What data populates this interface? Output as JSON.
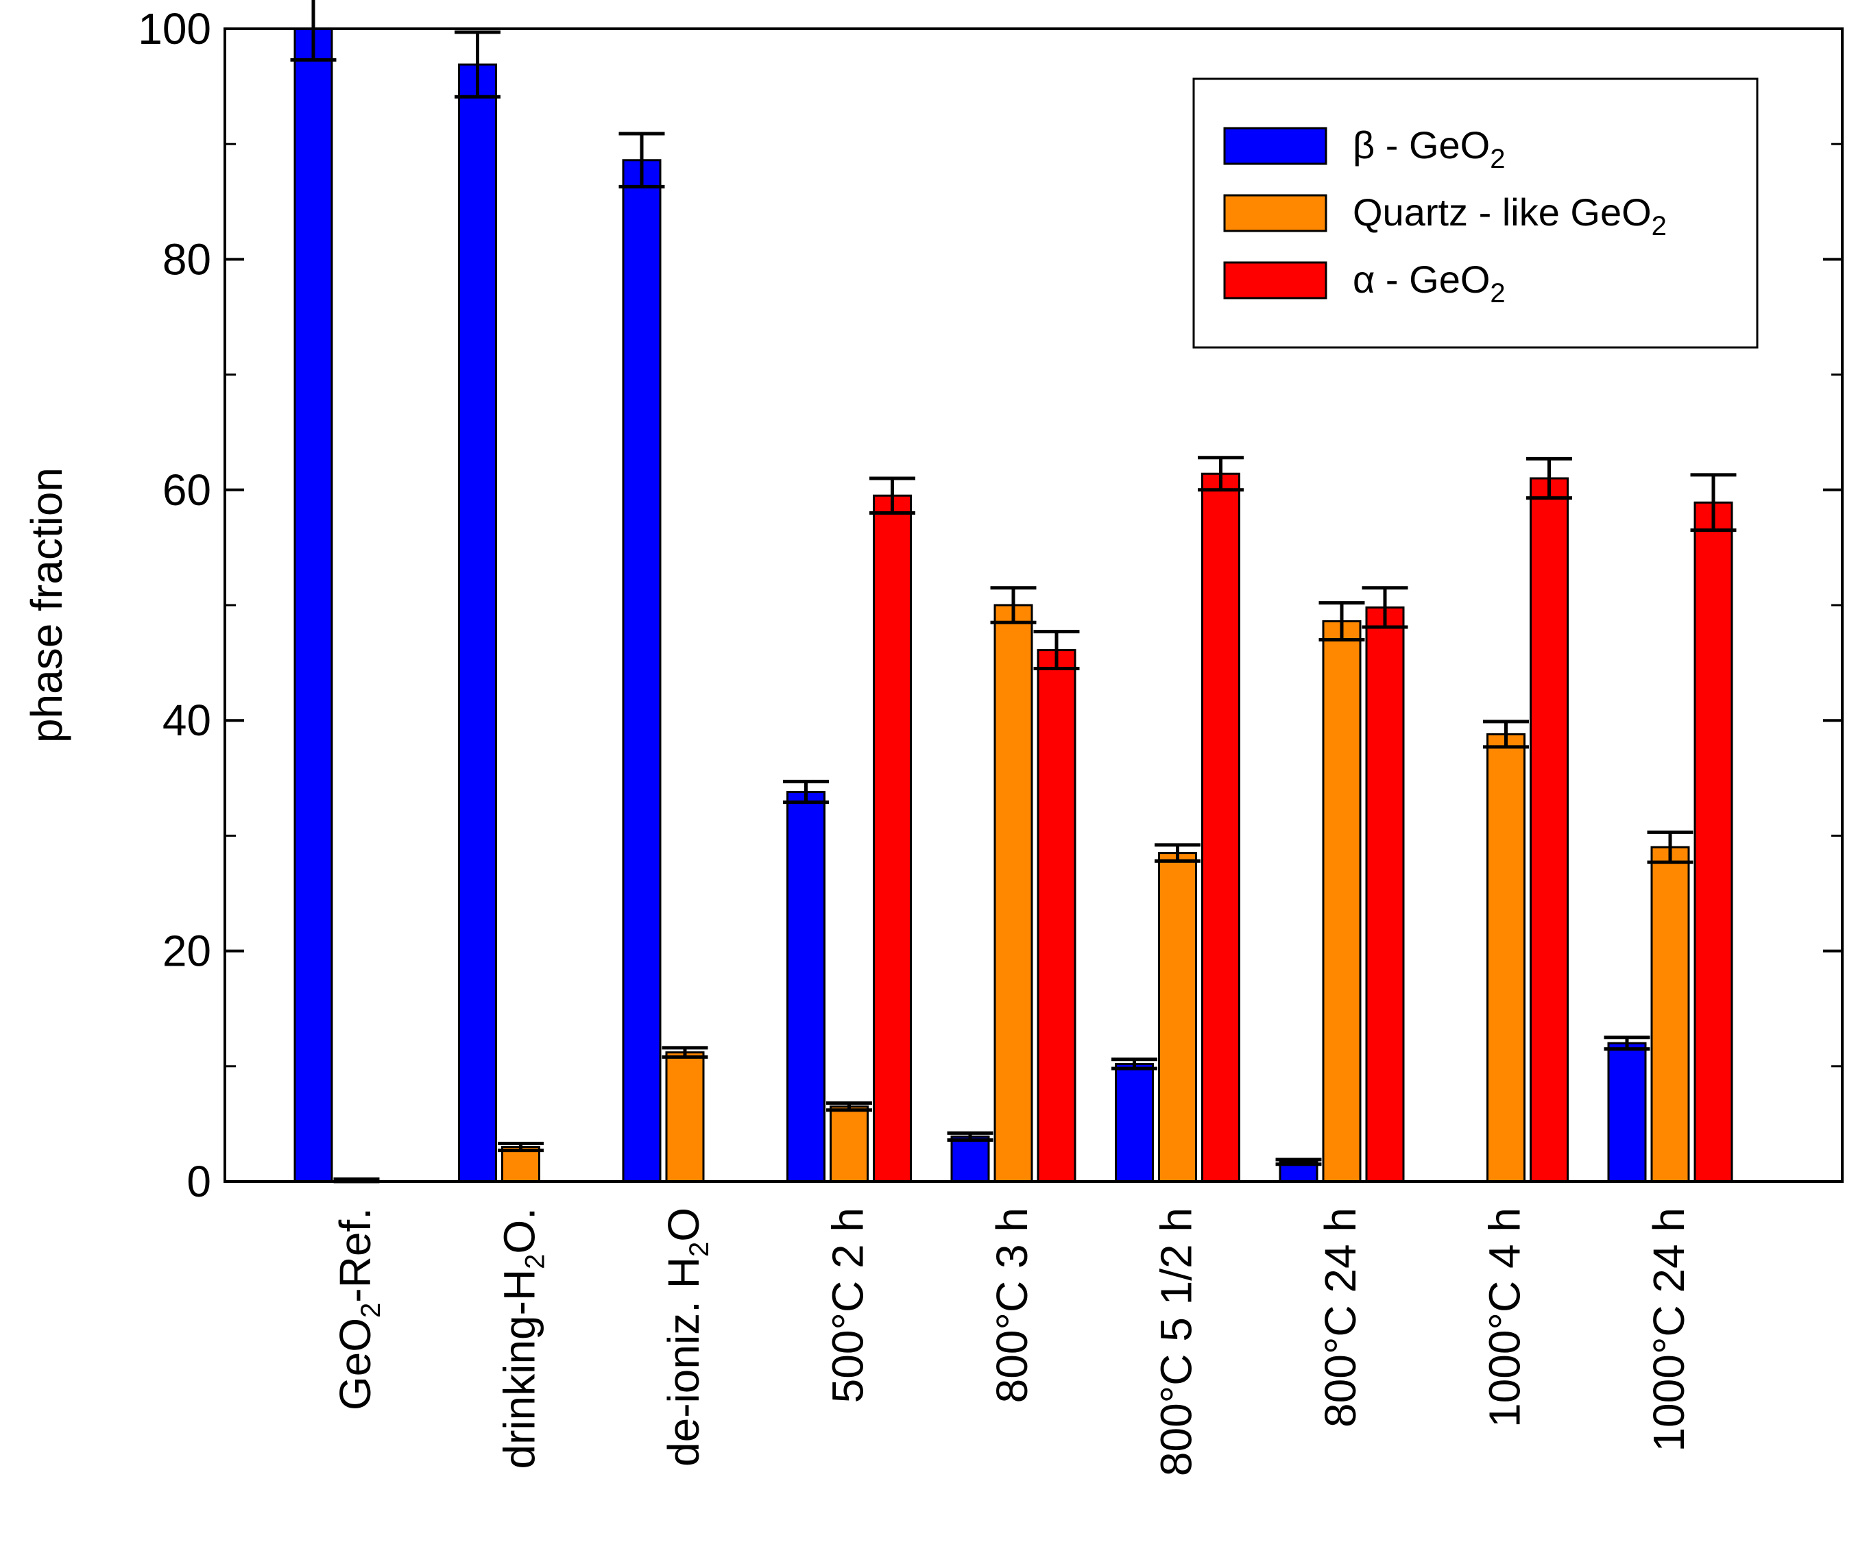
{
  "chart_data": {
    "type": "bar",
    "title": "",
    "xlabel": "",
    "ylabel": "phase fraction",
    "ylim": [
      0,
      100
    ],
    "yticks": [
      0,
      20,
      40,
      60,
      80,
      100
    ],
    "grid": false,
    "legend_position": "top-right",
    "categories": [
      {
        "parts": [
          {
            "t": "GeO"
          },
          {
            "t": "2",
            "sub": true
          },
          {
            "t": "-Ref."
          }
        ]
      },
      {
        "parts": [
          {
            "t": "drinking-H"
          },
          {
            "t": "2",
            "sub": true
          },
          {
            "t": "O."
          }
        ]
      },
      {
        "parts": [
          {
            "t": "de-ioniz. H"
          },
          {
            "t": "2",
            "sub": true
          },
          {
            "t": "O"
          }
        ]
      },
      {
        "parts": [
          {
            "t": "500°C 2 h"
          }
        ]
      },
      {
        "parts": [
          {
            "t": "800°C 3 h"
          }
        ]
      },
      {
        "parts": [
          {
            "t": "800°C 5 1/2 h"
          }
        ]
      },
      {
        "parts": [
          {
            "t": "800°C 24 h"
          }
        ]
      },
      {
        "parts": [
          {
            "t": "1000°C 4 h"
          }
        ]
      },
      {
        "parts": [
          {
            "t": "1000°C 24 h"
          }
        ]
      }
    ],
    "series": [
      {
        "name": "β - GeO2",
        "legend_parts": [
          {
            "t": "β - GeO"
          },
          {
            "t": "2",
            "sub": true
          }
        ],
        "color": "#0000FF",
        "values": [
          100,
          96.9,
          88.6,
          33.8,
          3.9,
          10.2,
          1.7,
          null,
          12.0
        ],
        "errors": [
          2.7,
          2.8,
          2.3,
          0.9,
          0.3,
          0.4,
          0.2,
          null,
          0.5
        ]
      },
      {
        "name": "Quartz - like GeO2",
        "legend_parts": [
          {
            "t": "Quartz - like GeO"
          },
          {
            "t": "2",
            "sub": true
          }
        ],
        "color": "#FF8800",
        "values": [
          0.1,
          3.0,
          11.2,
          6.5,
          50.0,
          28.5,
          48.6,
          38.8,
          29.0
        ],
        "errors": [
          0.1,
          0.3,
          0.4,
          0.3,
          1.5,
          0.7,
          1.6,
          1.1,
          1.3
        ]
      },
      {
        "name": "α - GeO2",
        "legend_parts": [
          {
            "t": "α - GeO"
          },
          {
            "t": "2",
            "sub": true
          }
        ],
        "color": "#FF0000",
        "values": [
          null,
          null,
          null,
          59.5,
          46.1,
          61.4,
          49.8,
          61.0,
          58.9
        ],
        "errors": [
          null,
          null,
          null,
          1.5,
          1.6,
          1.4,
          1.7,
          1.7,
          2.4
        ]
      }
    ]
  }
}
